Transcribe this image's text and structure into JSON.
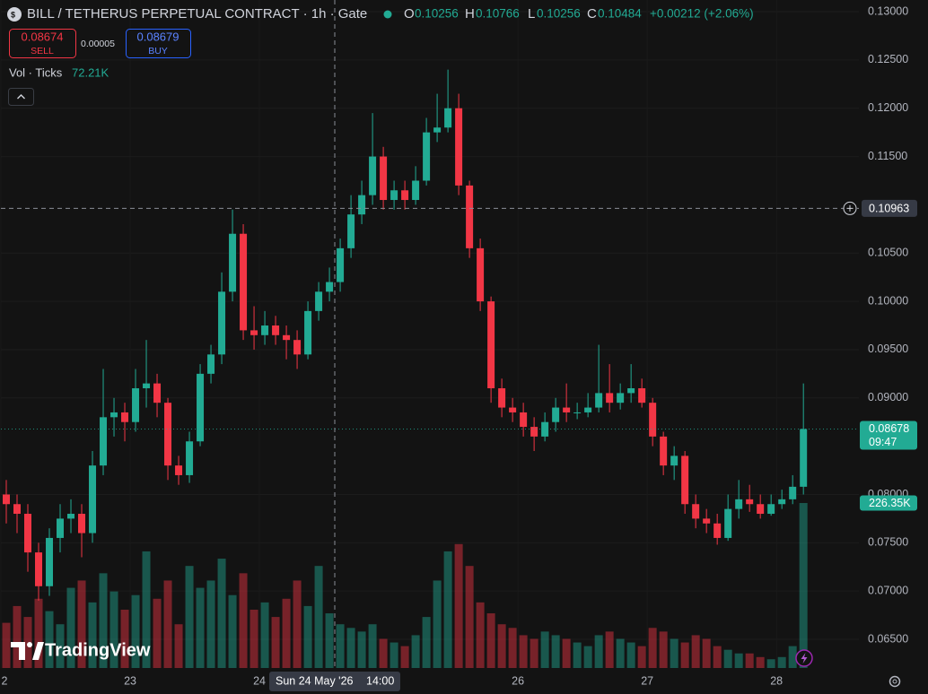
{
  "header": {
    "symbol_title": "BILL / TETHERUS PERPETUAL CONTRACT · 1h · Gate",
    "ohlc": [
      {
        "label": "O",
        "value": 0.10256
      },
      {
        "label": "H",
        "value": 0.10766
      },
      {
        "label": "L",
        "value": 0.10256
      },
      {
        "label": "C",
        "value": 0.10484
      }
    ],
    "change": "+0.00212 (+2.06%)",
    "sell_price": 0.08674,
    "sell_label": "SELL",
    "spread": 5e-05,
    "buy_price": 0.08679,
    "buy_label": "BUY",
    "volume_indicator": "Vol · Ticks",
    "volume_indicator_value": "72.21K"
  },
  "logo": "TradingView",
  "chart_data": {
    "type": "candlestick",
    "x": [
      1,
      3,
      5,
      7,
      9,
      11,
      13,
      15,
      17,
      19,
      21,
      23,
      25,
      27,
      29,
      31,
      33,
      35,
      37,
      39,
      41,
      43,
      45,
      47,
      49,
      51,
      53,
      55,
      57,
      59,
      61,
      63,
      65,
      67,
      69,
      71,
      73,
      75,
      77,
      79,
      81,
      83,
      85,
      87,
      89,
      91,
      93,
      95,
      97,
      99,
      101,
      103,
      105,
      107,
      109,
      111,
      113,
      115,
      117,
      119,
      121,
      123,
      125,
      127,
      129,
      131,
      133,
      135,
      137,
      139,
      141,
      143,
      145,
      147,
      149
    ],
    "open": [
      0.08,
      0.079,
      0.078,
      0.074,
      0.0705,
      0.0755,
      0.0775,
      0.078,
      0.076,
      0.083,
      0.088,
      0.0885,
      0.0875,
      0.091,
      0.0915,
      0.0895,
      0.083,
      0.082,
      0.0855,
      0.0925,
      0.0945,
      0.101,
      0.107,
      0.097,
      0.0965,
      0.0975,
      0.0965,
      0.096,
      0.0945,
      0.099,
      0.101,
      0.102,
      0.1055,
      0.109,
      0.111,
      0.115,
      0.1105,
      0.1115,
      0.1105,
      0.1125,
      0.1175,
      0.118,
      0.12,
      0.112,
      0.1055,
      0.1,
      0.091,
      0.089,
      0.0885,
      0.087,
      0.086,
      0.0875,
      0.089,
      0.0885,
      0.0885,
      0.089,
      0.0905,
      0.0895,
      0.0905,
      0.091,
      0.0895,
      0.086,
      0.083,
      0.084,
      0.079,
      0.0775,
      0.077,
      0.0755,
      0.0785,
      0.0795,
      0.079,
      0.078,
      0.079,
      0.0795,
      0.0808
    ],
    "high": [
      0.0815,
      0.08,
      0.079,
      0.075,
      0.0765,
      0.079,
      0.0795,
      0.079,
      0.0845,
      0.093,
      0.09,
      0.0895,
      0.093,
      0.096,
      0.0925,
      0.09,
      0.084,
      0.0865,
      0.0935,
      0.0955,
      0.103,
      0.1095,
      0.108,
      0.0995,
      0.099,
      0.0985,
      0.0975,
      0.097,
      0.1,
      0.102,
      0.1035,
      0.1065,
      0.111,
      0.1125,
      0.1195,
      0.116,
      0.1125,
      0.1125,
      0.114,
      0.119,
      0.1215,
      0.124,
      0.1215,
      0.1125,
      0.1065,
      0.1005,
      0.092,
      0.09,
      0.0895,
      0.088,
      0.0885,
      0.09,
      0.0915,
      0.0895,
      0.0905,
      0.0955,
      0.0935,
      0.0915,
      0.0935,
      0.092,
      0.09,
      0.0865,
      0.085,
      0.0845,
      0.08,
      0.0785,
      0.078,
      0.08,
      0.0815,
      0.081,
      0.08,
      0.08,
      0.0805,
      0.082,
      0.0915
    ],
    "low": [
      0.077,
      0.076,
      0.072,
      0.069,
      0.0695,
      0.074,
      0.076,
      0.0735,
      0.075,
      0.082,
      0.086,
      0.0855,
      0.0865,
      0.089,
      0.088,
      0.0815,
      0.081,
      0.0812,
      0.085,
      0.0915,
      0.0935,
      0.1,
      0.096,
      0.095,
      0.0955,
      0.0955,
      0.094,
      0.093,
      0.094,
      0.098,
      0.1,
      0.101,
      0.1045,
      0.108,
      0.11,
      0.1095,
      0.1095,
      0.1095,
      0.11,
      0.112,
      0.1165,
      0.1175,
      0.111,
      0.1045,
      0.099,
      0.0895,
      0.088,
      0.0875,
      0.086,
      0.0845,
      0.0855,
      0.0865,
      0.0875,
      0.0878,
      0.088,
      0.0885,
      0.0885,
      0.0888,
      0.0895,
      0.089,
      0.085,
      0.082,
      0.0815,
      0.078,
      0.0765,
      0.076,
      0.0748,
      0.0752,
      0.0775,
      0.0782,
      0.0775,
      0.0778,
      0.0785,
      0.079,
      0.08
    ],
    "close": [
      0.079,
      0.078,
      0.074,
      0.0705,
      0.0755,
      0.0775,
      0.078,
      0.076,
      0.083,
      0.088,
      0.0885,
      0.0875,
      0.091,
      0.0915,
      0.0895,
      0.083,
      0.082,
      0.0855,
      0.0925,
      0.0945,
      0.101,
      0.107,
      0.097,
      0.0965,
      0.0975,
      0.0965,
      0.096,
      0.0945,
      0.099,
      0.101,
      0.102,
      0.1055,
      0.109,
      0.111,
      0.115,
      0.1105,
      0.1115,
      0.1105,
      0.1125,
      0.1175,
      0.118,
      0.12,
      0.112,
      0.1055,
      0.1,
      0.091,
      0.089,
      0.0885,
      0.087,
      0.086,
      0.0875,
      0.089,
      0.0885,
      0.0885,
      0.089,
      0.0905,
      0.0895,
      0.0905,
      0.091,
      0.0895,
      0.086,
      0.083,
      0.084,
      0.079,
      0.0775,
      0.077,
      0.0755,
      0.0785,
      0.0795,
      0.079,
      0.078,
      0.079,
      0.0795,
      0.0808,
      0.08678
    ],
    "volume": [
      62000,
      85000,
      70000,
      95000,
      78000,
      60000,
      110000,
      120000,
      90000,
      130000,
      105000,
      80000,
      100000,
      160000,
      95000,
      120000,
      60000,
      140000,
      110000,
      120000,
      150000,
      100000,
      130000,
      80000,
      90000,
      70000,
      95000,
      120000,
      85000,
      140000,
      75000,
      60000,
      55000,
      50000,
      60000,
      40000,
      35000,
      30000,
      45000,
      70000,
      120000,
      160000,
      170000,
      140000,
      90000,
      75000,
      60000,
      55000,
      45000,
      40000,
      50000,
      45000,
      40000,
      35000,
      30000,
      45000,
      50000,
      40000,
      35000,
      30000,
      55000,
      50000,
      40000,
      35000,
      45000,
      40000,
      30000,
      25000,
      20000,
      20000,
      15000,
      12000,
      15000,
      30000,
      226350
    ],
    "up_color": "#22ab94",
    "down_color": "#f23645",
    "xlim": [
      0,
      159.3
    ],
    "ylim": [
      0.06203,
      0.13121
    ],
    "xticks": [
      {
        "value": 0,
        "label": "2"
      },
      {
        "value": 24,
        "label": "23"
      },
      {
        "value": 48,
        "label": "24"
      },
      {
        "value": 96,
        "label": "26"
      },
      {
        "value": 120,
        "label": "27"
      },
      {
        "value": 144,
        "label": "28"
      }
    ],
    "yticks": [
      {
        "value": 0.13,
        "label": "0.13000"
      },
      {
        "value": 0.125,
        "label": "0.12500"
      },
      {
        "value": 0.12,
        "label": "0.12000"
      },
      {
        "value": 0.115,
        "label": "0.11500"
      },
      {
        "value": 0.105,
        "label": "0.10500"
      },
      {
        "value": 0.1,
        "label": "0.10000"
      },
      {
        "value": 0.095,
        "label": "0.09500"
      },
      {
        "value": 0.09,
        "label": "0.09000"
      },
      {
        "value": 0.08,
        "label": "0.08000"
      },
      {
        "value": 0.075,
        "label": "0.07500"
      },
      {
        "value": 0.07,
        "label": "0.07000"
      },
      {
        "value": 0.065,
        "label": "0.06500"
      }
    ],
    "grid": true,
    "crosshair_price": 0.10963,
    "crosshair_date": "Sun 24 May '26",
    "crosshair_time": "14:00",
    "last_price_countdown": "09:47",
    "last_volume_label": "226.35K"
  }
}
